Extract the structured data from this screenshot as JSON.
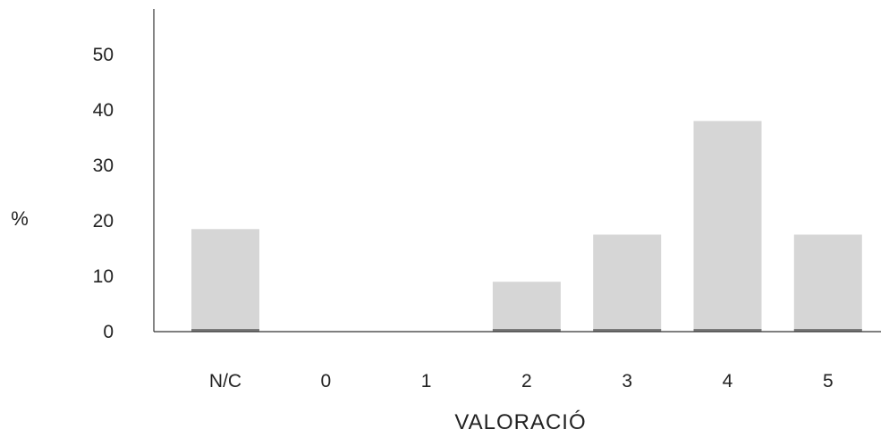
{
  "chart_data": {
    "type": "bar",
    "categories": [
      "N/C",
      "0",
      "1",
      "2",
      "3",
      "4",
      "5"
    ],
    "values": [
      18.5,
      0,
      0,
      9,
      17.5,
      38,
      17.5
    ],
    "xlabel": "VALORACIÓ",
    "ylabel": "%",
    "yticks": [
      0,
      10,
      20,
      30,
      40,
      50
    ],
    "ylim": [
      0,
      57
    ],
    "grid": false,
    "colors": {
      "bar": "#d6d6d6",
      "bar_base": "#7a7a7a",
      "axis": "#333333"
    }
  }
}
